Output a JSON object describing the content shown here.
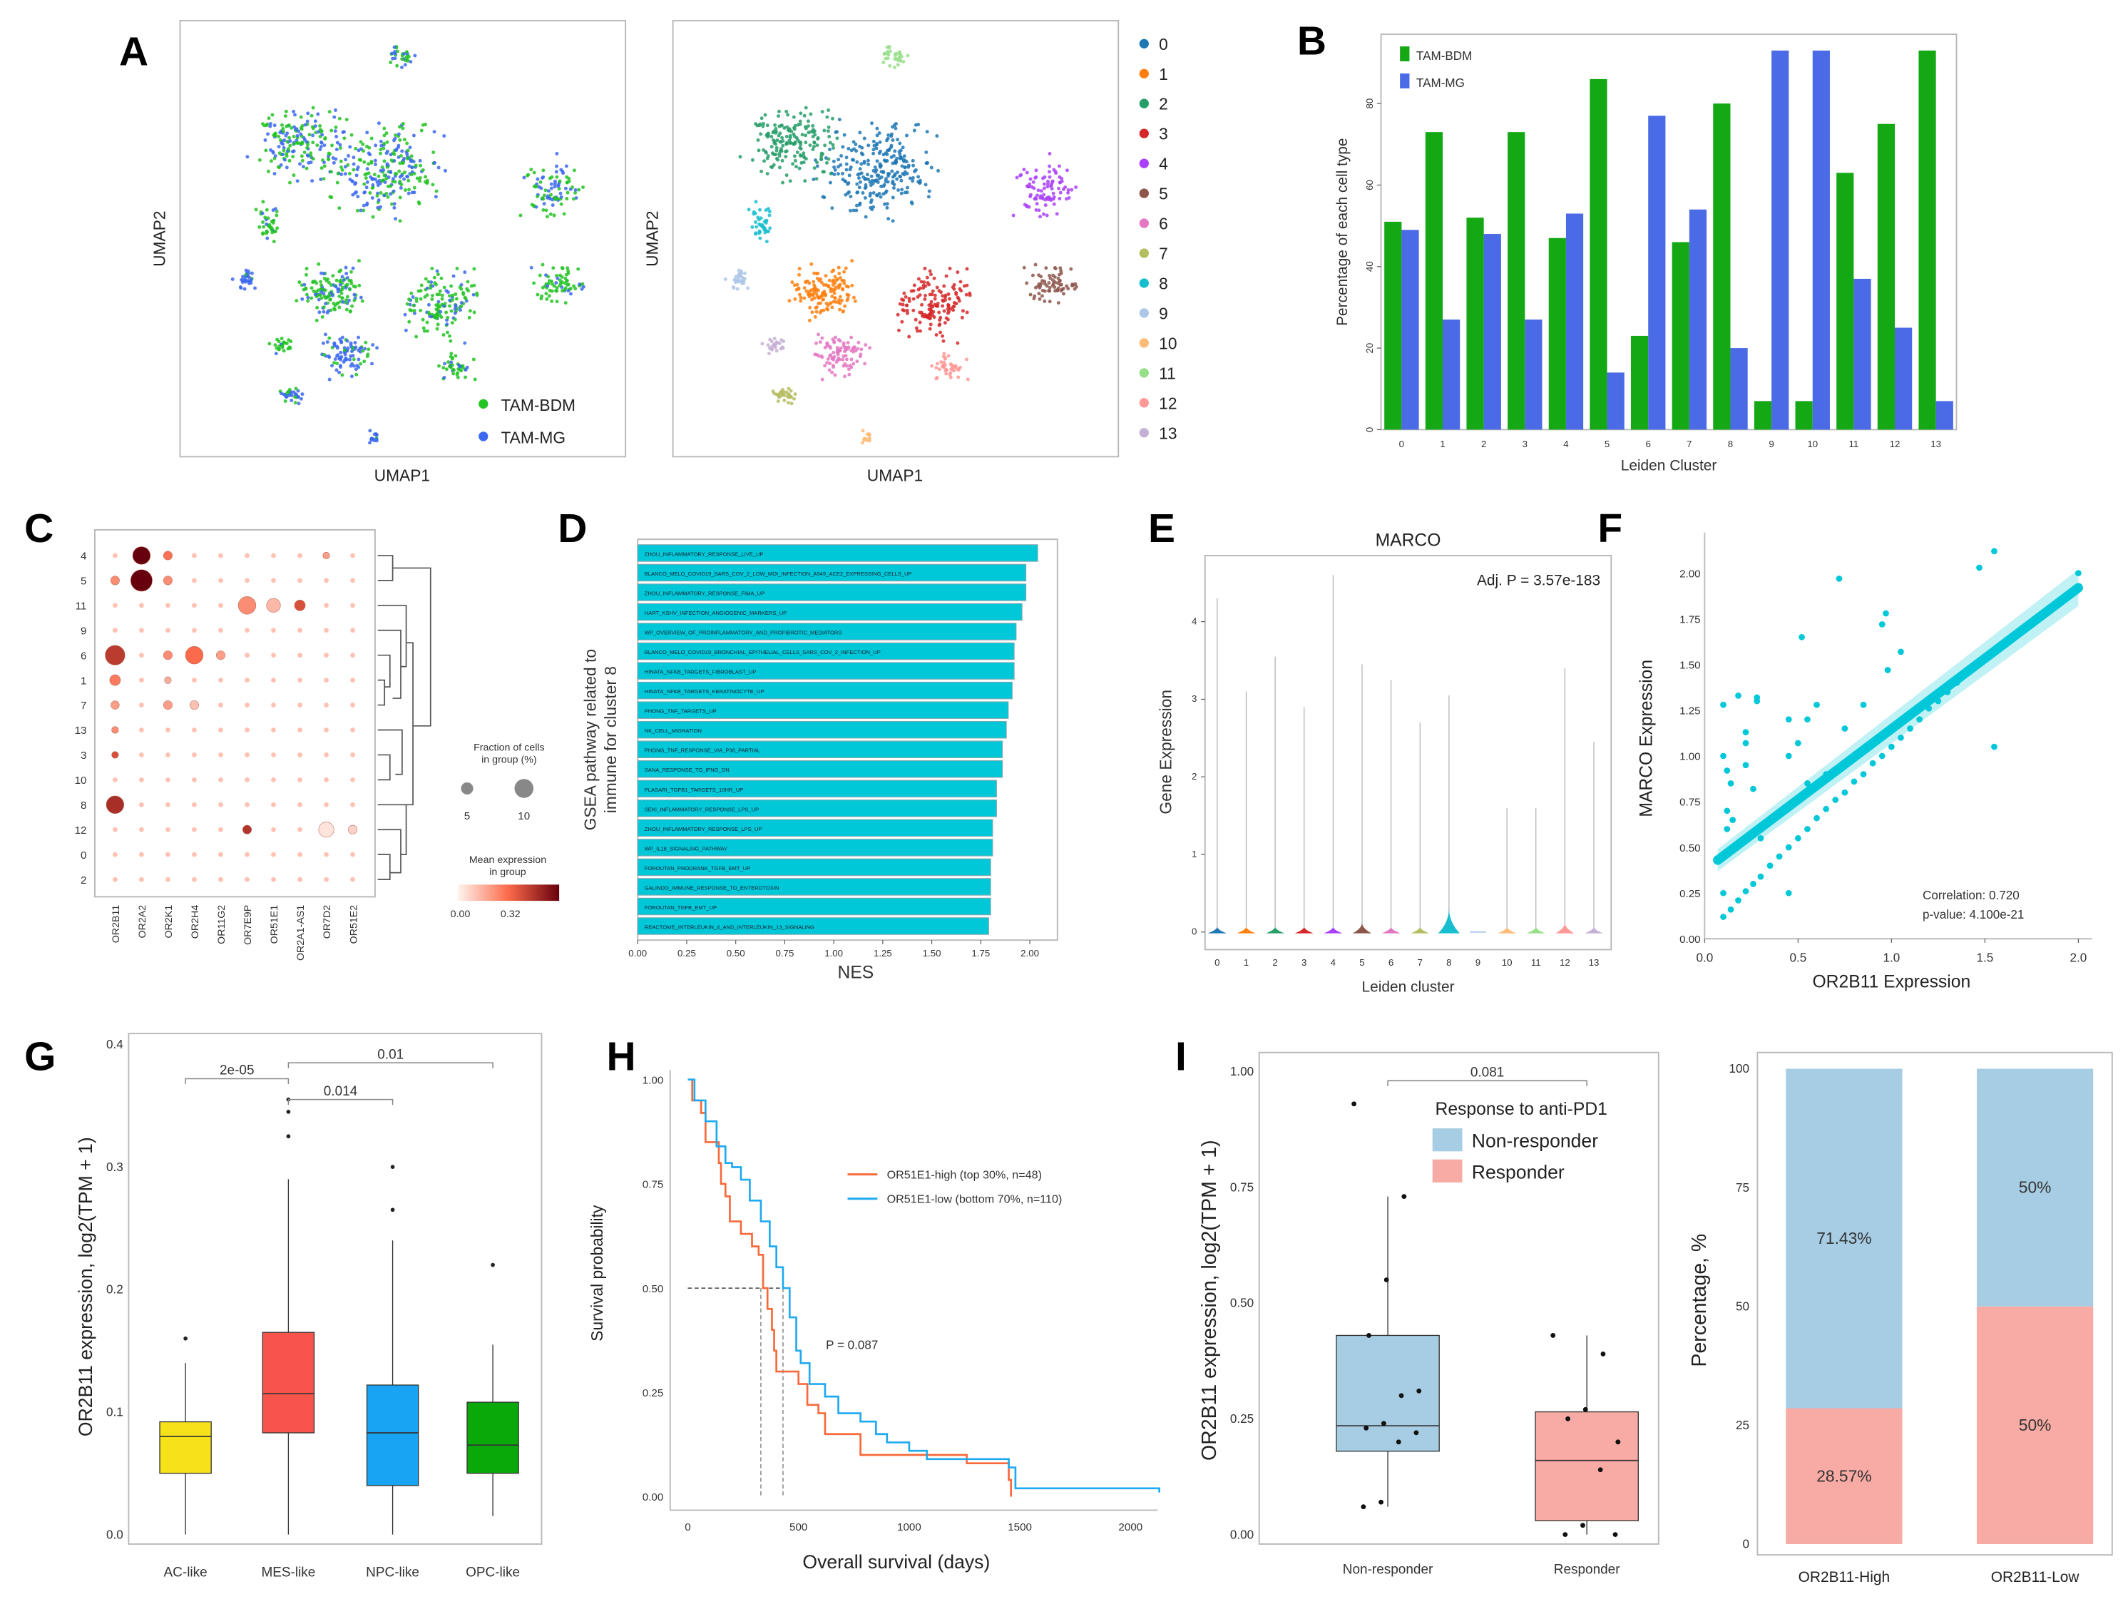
{
  "panel_letters": [
    "A",
    "B",
    "C",
    "D",
    "E",
    "F",
    "G",
    "H",
    "I"
  ],
  "chart_data": [
    {
      "id": "A_left",
      "type": "scatter",
      "xlabel": "UMAP1",
      "ylabel": "UMAP2",
      "legend": [
        {
          "name": "TAM-BDM",
          "color": "#22c322"
        },
        {
          "name": "TAM-MG",
          "color": "#3b67f0"
        }
      ],
      "legend_position": "bottom-right"
    },
    {
      "id": "A_right",
      "type": "scatter",
      "xlabel": "UMAP1",
      "ylabel": "UMAP2",
      "legend": [
        {
          "name": "0",
          "color": "#1f77b4"
        },
        {
          "name": "1",
          "color": "#ff7f0e"
        },
        {
          "name": "2",
          "color": "#279e68"
        },
        {
          "name": "3",
          "color": "#d62728"
        },
        {
          "name": "4",
          "color": "#aa40fc"
        },
        {
          "name": "5",
          "color": "#8c564b"
        },
        {
          "name": "6",
          "color": "#e377c2"
        },
        {
          "name": "7",
          "color": "#b5bd61"
        },
        {
          "name": "8",
          "color": "#17becf"
        },
        {
          "name": "9",
          "color": "#aec7e8"
        },
        {
          "name": "10",
          "color": "#ffbb78"
        },
        {
          "name": "11",
          "color": "#98df8a"
        },
        {
          "name": "12",
          "color": "#ff9896"
        },
        {
          "name": "13",
          "color": "#c5b0d5"
        }
      ],
      "legend_position": "right"
    },
    {
      "id": "B",
      "type": "bar",
      "xlabel": "Leiden Cluster",
      "ylabel": "Percentage of each cell type",
      "categories": [
        "0",
        "1",
        "2",
        "3",
        "4",
        "5",
        "6",
        "7",
        "8",
        "9",
        "10",
        "11",
        "12",
        "13"
      ],
      "yticks": [
        0,
        20,
        40,
        60,
        80
      ],
      "ylim": [
        0,
        97
      ],
      "series": [
        {
          "name": "TAM-BDM",
          "color": "#14a814",
          "values": [
            51,
            73,
            52,
            73,
            47,
            86,
            23,
            46,
            80,
            7,
            7,
            63,
            75,
            93
          ]
        },
        {
          "name": "TAM-MG",
          "color": "#4a6ae6",
          "values": [
            49,
            27,
            48,
            27,
            53,
            14,
            77,
            54,
            20,
            93,
            93,
            37,
            25,
            7
          ]
        }
      ],
      "legend_position": "top-left"
    },
    {
      "id": "C",
      "type": "dotplot",
      "rows": [
        "4",
        "5",
        "11",
        "9",
        "6",
        "1",
        "7",
        "13",
        "3",
        "10",
        "8",
        "12",
        "0",
        "2"
      ],
      "columns": [
        "OR2B11",
        "OR2A2",
        "OR2K1",
        "OR2H4",
        "OR11G2",
        "OR7E9P",
        "OR51E1",
        "OR2A1-AS1",
        "OR7D2",
        "OR51E2"
      ],
      "default_fraction": 0.6,
      "default_mean": 0.06,
      "dots": [
        {
          "row": "4",
          "col": "OR2A2",
          "fraction": 8,
          "mean": 0.32
        },
        {
          "row": "4",
          "col": "OR2K1",
          "fraction": 2,
          "mean": 0.15
        },
        {
          "row": "4",
          "col": "OR7D2",
          "fraction": 1.2,
          "mean": 0.1
        },
        {
          "row": "5",
          "col": "OR2B11",
          "fraction": 2,
          "mean": 0.12
        },
        {
          "row": "5",
          "col": "OR2A2",
          "fraction": 12,
          "mean": 0.32
        },
        {
          "row": "5",
          "col": "OR2K1",
          "fraction": 2,
          "mean": 0.12
        },
        {
          "row": "11",
          "col": "OR7E9P",
          "fraction": 8,
          "mean": 0.12
        },
        {
          "row": "11",
          "col": "OR51E1",
          "fraction": 5,
          "mean": 0.07
        },
        {
          "row": "11",
          "col": "OR2A1-AS1",
          "fraction": 3,
          "mean": 0.2
        },
        {
          "row": "6",
          "col": "OR2B11",
          "fraction": 10,
          "mean": 0.23
        },
        {
          "row": "6",
          "col": "OR2K1",
          "fraction": 2,
          "mean": 0.12
        },
        {
          "row": "6",
          "col": "OR2H4",
          "fraction": 8,
          "mean": 0.16
        },
        {
          "row": "6",
          "col": "OR11G2",
          "fraction": 2,
          "mean": 0.1
        },
        {
          "row": "1",
          "col": "OR2B11",
          "fraction": 3,
          "mean": 0.14
        },
        {
          "row": "1",
          "col": "OR2K1",
          "fraction": 1.2,
          "mean": 0.08
        },
        {
          "row": "7",
          "col": "OR2B11",
          "fraction": 1.8,
          "mean": 0.1
        },
        {
          "row": "7",
          "col": "OR2K1",
          "fraction": 2,
          "mean": 0.1
        },
        {
          "row": "7",
          "col": "OR2H4",
          "fraction": 2,
          "mean": 0.06
        },
        {
          "row": "13",
          "col": "OR2B11",
          "fraction": 1.2,
          "mean": 0.12
        },
        {
          "row": "3",
          "col": "OR2B11",
          "fraction": 1.2,
          "mean": 0.2
        },
        {
          "row": "8",
          "col": "OR2B11",
          "fraction": 8,
          "mean": 0.25
        },
        {
          "row": "12",
          "col": "OR7E9P",
          "fraction": 2,
          "mean": 0.24
        },
        {
          "row": "12",
          "col": "OR7D2",
          "fraction": 6,
          "mean": 0.02
        },
        {
          "row": "12",
          "col": "OR51E2",
          "fraction": 2,
          "mean": 0.04
        }
      ],
      "size_legend": {
        "title": "Fraction of cells in group (%)",
        "values": [
          "5",
          "10"
        ]
      },
      "color_legend": {
        "title": "Mean expression in group",
        "min_label": "0.00",
        "max_label": "0.32",
        "colors": [
          "#fff5f0",
          "#fb6a4a",
          "#67000d"
        ]
      }
    },
    {
      "id": "D",
      "type": "bar",
      "orientation": "horizontal",
      "xlabel": "NES",
      "ylabel": "GSEA pathway related to immune for cluster 8",
      "xticks": [
        "0.00",
        "0.25",
        "0.50",
        "0.75",
        "1.00",
        "1.25",
        "1.50",
        "1.75",
        "2.00"
      ],
      "xlim": [
        0,
        2.14
      ],
      "color": "#00c8d8",
      "categories": [
        "ZHOU_INFLAMMATORY_RESPONSE_LIVE_UP",
        "BLANCO_MELO_COVID19_SARS_COV_2_LOW_MOI_INFECTION_A549_ACE2_EXPRESSING_CELLS_UP",
        "ZHOU_INFLAMMATORY_RESPONSE_FIMA_UP",
        "HART_KSHV_INFECTION_ANGIOGENIC_MARKERS_UP",
        "WP_OVERVIEW_OF_PROINFLAMMATORY_AND_PROFIBROTIC_MEDIATORS",
        "BLANCO_MELO_COVID19_BRONCHIAL_EPITHELIAL_CELLS_SARS_COV_2_INFECTION_UP",
        "HINATA_NFKB_TARGETS_FIBROBLAST_UP",
        "HINATA_NFKB_TARGETS_KERATINOCYTE_UP",
        "PHONG_TNF_TARGETS_UP",
        "NK_CELL_MIGRATION",
        "PHONG_TNF_RESPONSE_VIA_P38_PARTIAL",
        "SANA_RESPONSE_TO_IFNG_DN",
        "PLASARI_TGFB1_TARGETS_10HR_UP",
        "SEKI_INFLAMMATORY_RESPONSE_LPS_UP",
        "ZHOU_INFLAMMATORY_RESPONSE_LPS_UP",
        "WP_IL18_SIGNALING_PATHWAY",
        "FOROUTAN_PRODRANK_TGFB_EMT_UP",
        "GALINDO_IMMUNE_RESPONSE_TO_ENTEROTOXIN",
        "FOROUTAN_TGFB_EMT_UP",
        "REACTOME_INTERLEUKIN_4_AND_INTERLEUKIN_13_SIGNALING"
      ],
      "values": [
        2.04,
        1.98,
        1.98,
        1.96,
        1.93,
        1.92,
        1.92,
        1.91,
        1.89,
        1.88,
        1.86,
        1.86,
        1.83,
        1.83,
        1.81,
        1.81,
        1.8,
        1.8,
        1.8,
        1.79
      ]
    },
    {
      "id": "E",
      "type": "violin",
      "title": "MARCO",
      "annotation": "Adj. P = 3.57e-183",
      "xlabel": "Leiden cluster",
      "ylabel": "Gene Expression",
      "categories": [
        "0",
        "1",
        "2",
        "3",
        "4",
        "5",
        "6",
        "7",
        "8",
        "9",
        "10",
        "11",
        "12",
        "13"
      ],
      "max_values": [
        4.3,
        3.1,
        3.55,
        2.9,
        4.6,
        3.45,
        3.25,
        2.7,
        3.05,
        0,
        1.6,
        1.6,
        3.4,
        2.45
      ],
      "yticks": [
        0,
        1,
        2,
        3,
        4
      ],
      "ylim": [
        -0.2,
        4.9
      ]
    },
    {
      "id": "F",
      "type": "scatter",
      "xlabel": "OR2B11 Expression",
      "ylabel": "MARCO Expression",
      "xticks": [
        "0.0",
        "0.5",
        "1.0",
        "1.5",
        "2.0"
      ],
      "yticks": [
        "0.00",
        "0.25",
        "0.50",
        "0.75",
        "1.00",
        "1.25",
        "1.50",
        "1.75",
        "2.00"
      ],
      "xlim": [
        0,
        2.1
      ],
      "ylim": [
        0,
        2.2
      ],
      "color": "#00c8d8",
      "annotations": [
        "Correlation: 0.720",
        "p-value: 4.100e-21"
      ],
      "fit_line": {
        "x": [
          0.07,
          2.0
        ],
        "y": [
          0.43,
          1.92
        ]
      },
      "points": [
        [
          0.1,
          1.28
        ],
        [
          0.1,
          1.0
        ],
        [
          0.12,
          0.92
        ],
        [
          0.14,
          0.85
        ],
        [
          0.18,
          1.33
        ],
        [
          0.22,
          1.13
        ],
        [
          0.22,
          1.07
        ],
        [
          0.22,
          0.95
        ],
        [
          0.26,
          0.82
        ],
        [
          0.28,
          1.32
        ],
        [
          0.28,
          1.3
        ],
        [
          0.45,
          1.2
        ],
        [
          0.45,
          1.0
        ],
        [
          0.5,
          1.07
        ],
        [
          0.52,
          1.65
        ],
        [
          0.55,
          1.2
        ],
        [
          0.6,
          1.28
        ],
        [
          0.72,
          1.97
        ],
        [
          0.75,
          1.15
        ],
        [
          0.85,
          1.28
        ],
        [
          0.95,
          1.72
        ],
        [
          0.97,
          1.78
        ],
        [
          0.98,
          1.47
        ],
        [
          1.05,
          1.57
        ],
        [
          1.47,
          2.03
        ],
        [
          1.55,
          2.12
        ],
        [
          1.55,
          1.05
        ],
        [
          0.45,
          0.25
        ],
        [
          0.1,
          0.25
        ],
        [
          0.12,
          0.6
        ],
        [
          0.12,
          0.7
        ],
        [
          0.15,
          0.65
        ],
        [
          0.3,
          0.55
        ],
        [
          0.55,
          0.85
        ],
        [
          0.65,
          0.9
        ],
        [
          0.1,
          0.12
        ],
        [
          0.14,
          0.16
        ],
        [
          0.18,
          0.21
        ],
        [
          0.22,
          0.26
        ],
        [
          0.26,
          0.3
        ],
        [
          0.3,
          0.34
        ],
        [
          0.35,
          0.4
        ],
        [
          0.4,
          0.45
        ],
        [
          0.45,
          0.5
        ],
        [
          0.5,
          0.55
        ],
        [
          0.55,
          0.6
        ],
        [
          0.6,
          0.66
        ],
        [
          0.65,
          0.71
        ],
        [
          0.7,
          0.76
        ],
        [
          0.75,
          0.8
        ],
        [
          0.8,
          0.86
        ],
        [
          0.85,
          0.9
        ],
        [
          0.9,
          0.96
        ],
        [
          0.95,
          1.0
        ],
        [
          1.0,
          1.05
        ],
        [
          1.05,
          1.1
        ],
        [
          1.1,
          1.15
        ],
        [
          1.15,
          1.2
        ],
        [
          1.2,
          1.26
        ],
        [
          1.25,
          1.3
        ],
        [
          1.3,
          1.35
        ],
        [
          1.35,
          1.4
        ],
        [
          1.4,
          1.46
        ],
        [
          2.0,
          2.0
        ]
      ]
    },
    {
      "id": "G",
      "type": "box",
      "ylabel": "OR2B11 expression, log2(TPM + 1)",
      "categories": [
        "AC-like",
        "MES-like",
        "NPC-like",
        "OPC-like"
      ],
      "colors": [
        "#f7e21a",
        "#f8544c",
        "#18a4f2",
        "#0aa90a"
      ],
      "yticks": [
        "0.0",
        "0.1",
        "0.2",
        "0.3",
        "0.4"
      ],
      "ylim": [
        0,
        0.41
      ],
      "boxes": [
        {
          "min": 0.0,
          "q1": 0.05,
          "median": 0.08,
          "q3": 0.092,
          "max": 0.14,
          "outliers": [
            0.16
          ]
        },
        {
          "min": 0.0,
          "q1": 0.083,
          "median": 0.115,
          "q3": 0.165,
          "max": 0.29,
          "outliers": [
            0.325,
            0.345,
            0.355
          ]
        },
        {
          "min": 0.0,
          "q1": 0.04,
          "median": 0.083,
          "q3": 0.122,
          "max": 0.24,
          "outliers": [
            0.265,
            0.3
          ]
        },
        {
          "min": 0.015,
          "q1": 0.05,
          "median": 0.073,
          "q3": 0.108,
          "max": 0.155,
          "outliers": [
            0.22
          ]
        }
      ],
      "comparisons": [
        {
          "from": "AC-like",
          "to": "MES-like",
          "label": "2e-05",
          "y": 0.372
        },
        {
          "from": "MES-like",
          "to": "NPC-like",
          "label": "0.014",
          "y": 0.355
        },
        {
          "from": "MES-like",
          "to": "OPC-like",
          "label": "0.01",
          "y": 0.385
        }
      ]
    },
    {
      "id": "H",
      "type": "line",
      "subtype": "kaplan-meier",
      "xlabel": "Overall survival (days)",
      "ylabel": "Survival probability",
      "xticks": [
        "0",
        "500",
        "1000",
        "1500",
        "2000"
      ],
      "yticks": [
        "0.00",
        "0.25",
        "0.50",
        "0.75",
        "1.00"
      ],
      "xlim": [
        0,
        2140
      ],
      "ylim": [
        0,
        1
      ],
      "annotation": "P = 0.087",
      "medians": [
        330,
        430
      ],
      "series": [
        {
          "name": "OR51E1-high (top 30%, n=48)",
          "color": "#f7693a",
          "x": [
            0,
            20,
            60,
            80,
            140,
            150,
            170,
            190,
            240,
            290,
            320,
            340,
            360,
            380,
            390,
            400,
            500,
            540,
            590,
            620,
            750,
            780,
            1260,
            1450,
            1460
          ],
          "y": [
            1,
            0.95,
            0.92,
            0.85,
            0.8,
            0.75,
            0.72,
            0.66,
            0.63,
            0.6,
            0.58,
            0.5,
            0.45,
            0.4,
            0.35,
            0.3,
            0.27,
            0.22,
            0.2,
            0.15,
            0.15,
            0.1,
            0.08,
            0.04,
            0.0
          ]
        },
        {
          "name": "OR51E1-low (bottom 70%, n=110)",
          "color": "#1eaaf0",
          "x": [
            0,
            30,
            80,
            130,
            170,
            200,
            240,
            280,
            330,
            370,
            400,
            430,
            460,
            490,
            510,
            550,
            620,
            680,
            780,
            850,
            900,
            1000,
            1080,
            1450,
            1480,
            2130
          ],
          "y": [
            1,
            0.95,
            0.9,
            0.84,
            0.8,
            0.79,
            0.76,
            0.71,
            0.66,
            0.6,
            0.55,
            0.5,
            0.43,
            0.35,
            0.32,
            0.27,
            0.24,
            0.2,
            0.18,
            0.15,
            0.13,
            0.11,
            0.09,
            0.07,
            0.02,
            0.01
          ]
        }
      ],
      "legend_position": "right"
    },
    {
      "id": "I_left",
      "type": "box",
      "ylabel": "OR2B11 expression, log2(TPM + 1)",
      "categories": [
        "Non-responder",
        "Responder"
      ],
      "legend_title": "Response to anti-PD1",
      "colors": [
        "#a6cde3",
        "#f8aaa4"
      ],
      "yticks": [
        "0.00",
        "0.25",
        "0.50",
        "0.75",
        "1.00"
      ],
      "ylim": [
        -0.02,
        1.05
      ],
      "boxes": [
        {
          "min": 0.06,
          "q1": 0.18,
          "median": 0.235,
          "q3": 0.43,
          "max": 0.73,
          "points": [
            0.93,
            0.73,
            0.55,
            0.43,
            0.31,
            0.3,
            0.24,
            0.23,
            0.22,
            0.2,
            0.07,
            0.06
          ]
        },
        {
          "min": 0.0,
          "q1": 0.03,
          "median": 0.16,
          "q3": 0.265,
          "max": 0.43,
          "points": [
            0.43,
            0.39,
            0.27,
            0.25,
            0.2,
            0.14,
            0.02,
            0.0,
            0.0
          ]
        }
      ],
      "comparison": {
        "label": "0.081",
        "y": 0.98
      }
    },
    {
      "id": "I_right",
      "type": "bar",
      "stacked": true,
      "ylabel": "Percentage, %",
      "categories": [
        "OR2B11-High",
        "OR2B11-Low"
      ],
      "yticks": [
        "0",
        "25",
        "50",
        "75",
        "100"
      ],
      "ylim": [
        0,
        100
      ],
      "series": [
        {
          "name": "Responder",
          "color": "#f8aaa4",
          "values": [
            28.57,
            50
          ],
          "labels": [
            "28.57%",
            "50%"
          ]
        },
        {
          "name": "Non-responder",
          "color": "#a6cde3",
          "values": [
            71.43,
            50
          ],
          "labels": [
            "71.43%",
            "50%"
          ]
        }
      ]
    }
  ]
}
